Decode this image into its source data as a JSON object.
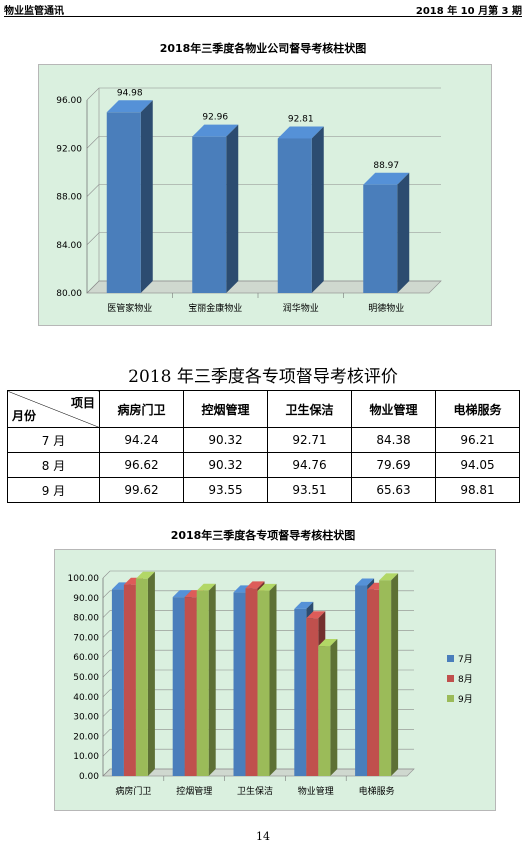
{
  "header": {
    "left": "物业监管通讯",
    "right": "2018 年 10 月第 3 期"
  },
  "chart1": {
    "title": "2018年三季度各物业公司督导考核柱状图",
    "chart_data": {
      "type": "bar",
      "categories": [
        "医管家物业",
        "宝丽金康物业",
        "润华物业",
        "明德物业"
      ],
      "values": [
        94.98,
        92.96,
        92.81,
        88.97
      ],
      "data_labels": [
        "94.98",
        "92.96",
        "92.81",
        "88.97"
      ],
      "ylim": [
        80,
        96
      ],
      "yticks": [
        "80.00",
        "84.00",
        "88.00",
        "92.00",
        "96.00"
      ],
      "grid": true,
      "bar_color": "#4a7ebb"
    }
  },
  "table": {
    "title": "2018 年三季度各专项督导考核评价",
    "corner_top": "项目",
    "corner_bottom": "月份",
    "headers": [
      "病房门卫",
      "控烟管理",
      "卫生保洁",
      "物业管理",
      "电梯服务"
    ],
    "rows": [
      {
        "label": "7 月",
        "values": [
          "94.24",
          "90.32",
          "92.71",
          "84.38",
          "96.21"
        ]
      },
      {
        "label": "8 月",
        "values": [
          "96.62",
          "90.32",
          "94.76",
          "79.69",
          "94.05"
        ]
      },
      {
        "label": "9 月",
        "values": [
          "99.62",
          "93.55",
          "93.51",
          "65.63",
          "98.81"
        ]
      }
    ]
  },
  "chart2": {
    "title": "2018年三季度各专项督导考核柱状图",
    "chart_data": {
      "type": "bar",
      "categories": [
        "病房门卫",
        "控烟管理",
        "卫生保洁",
        "物业管理",
        "电梯服务"
      ],
      "series": [
        {
          "name": "7月",
          "values": [
            94.24,
            90.32,
            92.71,
            84.38,
            96.21
          ],
          "color": "#4a7ebb"
        },
        {
          "name": "8月",
          "values": [
            96.62,
            90.32,
            94.76,
            79.69,
            94.05
          ],
          "color": "#c0504d"
        },
        {
          "name": "9月",
          "values": [
            99.62,
            93.55,
            93.51,
            65.63,
            98.81
          ],
          "color": "#9bbb59"
        }
      ],
      "ylim": [
        0,
        100
      ],
      "yticks": [
        "0.00",
        "10.00",
        "20.00",
        "30.00",
        "40.00",
        "50.00",
        "60.00",
        "70.00",
        "80.00",
        "90.00",
        "100.00"
      ],
      "grid": true,
      "legend": "right"
    }
  },
  "page_number": "14"
}
